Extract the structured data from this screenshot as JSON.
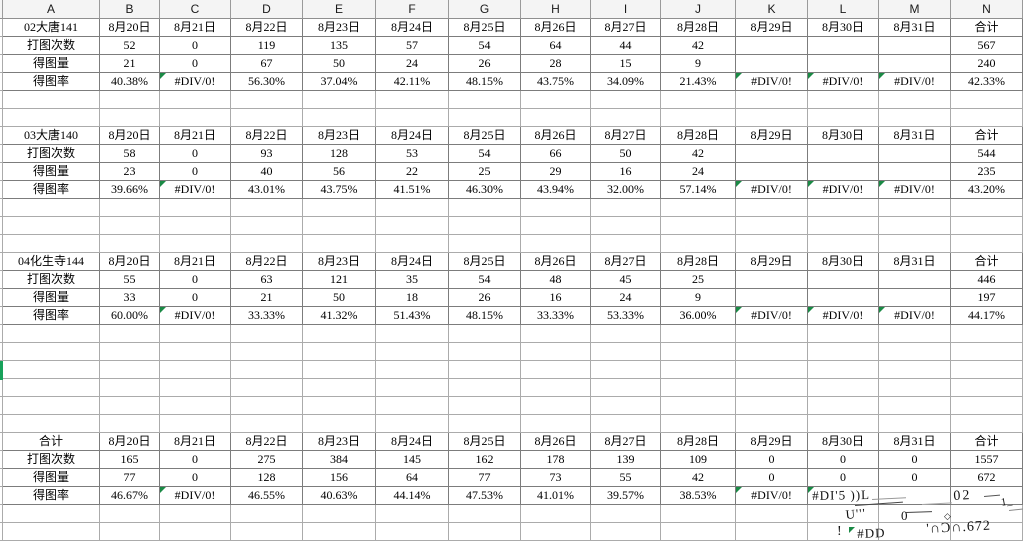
{
  "sheet": {
    "column_headers": [
      "A",
      "B",
      "C",
      "D",
      "E",
      "F",
      "G",
      "H",
      "I",
      "J",
      "K",
      "L",
      "M",
      "N"
    ],
    "total_label": "合计",
    "dates": [
      "8月20日",
      "8月21日",
      "8月22日",
      "8月23日",
      "8月24日",
      "8月25日",
      "8月26日",
      "8月27日",
      "8月28日",
      "8月29日",
      "8月30日",
      "8月31日"
    ],
    "sections": [
      {
        "name": "02大唐141",
        "rows": [
          {
            "label": "打图次数",
            "values": [
              "52",
              "0",
              "119",
              "135",
              "57",
              "54",
              "64",
              "44",
              "42",
              "",
              "",
              "",
              "567"
            ],
            "flags": []
          },
          {
            "label": "得图量",
            "values": [
              "21",
              "0",
              "67",
              "50",
              "24",
              "26",
              "28",
              "15",
              "9",
              "",
              "",
              "",
              "240"
            ],
            "flags": []
          },
          {
            "label": "得图率",
            "values": [
              "40.38%",
              "#DIV/0!",
              "56.30%",
              "37.04%",
              "42.11%",
              "48.15%",
              "43.75%",
              "34.09%",
              "21.43%",
              "#DIV/0!",
              "#DIV/0!",
              "#DIV/0!",
              "42.33%"
            ],
            "flags": [
              1,
              9,
              10,
              11
            ]
          }
        ]
      },
      {
        "name": "03大唐140",
        "rows": [
          {
            "label": "打图次数",
            "values": [
              "58",
              "0",
              "93",
              "128",
              "53",
              "54",
              "66",
              "50",
              "42",
              "",
              "",
              "",
              "544"
            ],
            "flags": []
          },
          {
            "label": "得图量",
            "values": [
              "23",
              "0",
              "40",
              "56",
              "22",
              "25",
              "29",
              "16",
              "24",
              "",
              "",
              "",
              "235"
            ],
            "flags": []
          },
          {
            "label": "得图率",
            "values": [
              "39.66%",
              "#DIV/0!",
              "43.01%",
              "43.75%",
              "41.51%",
              "46.30%",
              "43.94%",
              "32.00%",
              "57.14%",
              "#DIV/0!",
              "#DIV/0!",
              "#DIV/0!",
              "43.20%"
            ],
            "flags": [
              1,
              9,
              10,
              11
            ]
          }
        ]
      },
      {
        "name": "04化生寺144",
        "rows": [
          {
            "label": "打图次数",
            "values": [
              "55",
              "0",
              "63",
              "121",
              "35",
              "54",
              "48",
              "45",
              "25",
              "",
              "",
              "",
              "446"
            ],
            "flags": []
          },
          {
            "label": "得图量",
            "values": [
              "33",
              "0",
              "21",
              "50",
              "18",
              "26",
              "16",
              "24",
              "9",
              "",
              "",
              "",
              "197"
            ],
            "flags": []
          },
          {
            "label": "得图率",
            "values": [
              "60.00%",
              "#DIV/0!",
              "33.33%",
              "41.32%",
              "51.43%",
              "48.15%",
              "33.33%",
              "53.33%",
              "36.00%",
              "#DIV/0!",
              "#DIV/0!",
              "#DIV/0!",
              "44.17%"
            ],
            "flags": [
              1,
              9,
              10,
              11
            ]
          }
        ]
      },
      {
        "name": "合计",
        "rows": [
          {
            "label": "打图次数",
            "values": [
              "165",
              "0",
              "275",
              "384",
              "145",
              "162",
              "178",
              "139",
              "109",
              "0",
              "0",
              "0",
              "1557"
            ],
            "flags": []
          },
          {
            "label": "得图量",
            "values": [
              "77",
              "0",
              "128",
              "156",
              "64",
              "77",
              "73",
              "55",
              "42",
              "0",
              "0",
              "0",
              "672"
            ],
            "flags": []
          },
          {
            "label": "得图率",
            "values": [
              "46.67%",
              "#DIV/0!",
              "46.55%",
              "40.63%",
              "44.14%",
              "47.53%",
              "41.01%",
              "39.57%",
              "38.53%",
              "#DIV/0!",
              "",
              "",
              ""
            ],
            "flags": [
              1,
              9,
              10
            ]
          }
        ]
      }
    ]
  },
  "artifacts": {
    "fragments": [
      "#DI'5 ))L",
      "U'''",
      "0",
      "02",
      "1_",
      "◇",
      "!",
      "#DD",
      "'∩Ɔ∩.672"
    ]
  },
  "colors": {
    "error_indicator": "#1a8a45",
    "selection_border": "#17a15a",
    "gridline": "#ababab",
    "table_border": "#7c7c7c",
    "header_bg": "#f4f4f4"
  }
}
